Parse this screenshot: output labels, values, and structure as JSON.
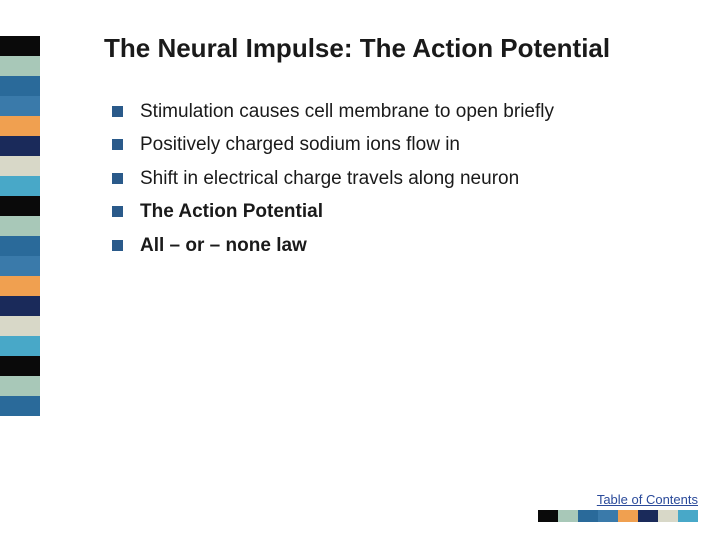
{
  "title": {
    "text": "The Neural Impulse: The Action Potential",
    "fontsize": 26,
    "color": "#1a1a1a"
  },
  "bullets": {
    "fontsize": 19,
    "marker_color": "#2a5a8a",
    "items": [
      {
        "text": "Stimulation causes cell membrane to open briefly",
        "bold": false
      },
      {
        "text": "Positively charged sodium ions flow in",
        "bold": false
      },
      {
        "text": "Shift in electrical charge travels along neuron",
        "bold": false
      },
      {
        "text": "The Action Potential",
        "bold": true
      },
      {
        "text": "All – or – none law",
        "bold": true
      }
    ]
  },
  "sidebar": {
    "block_width": 40,
    "block_height": 20,
    "colors": [
      "#0a0a0a",
      "#a8c8b8",
      "#2a6a9a",
      "#3a7aaa",
      "#f0a050",
      "#1a2a5a",
      "#d8d8c8",
      "#48a8c8",
      "#0a0a0a",
      "#a8c8b8",
      "#2a6a9a",
      "#3a7aaa",
      "#f0a050",
      "#1a2a5a",
      "#d8d8c8",
      "#48a8c8",
      "#0a0a0a",
      "#a8c8b8",
      "#2a6a9a"
    ]
  },
  "footer": {
    "toc_label": "Table of Contents",
    "toc_fontsize": 13,
    "strip_colors": [
      "#0a0a0a",
      "#a8c8b8",
      "#2a6a9a",
      "#3a7aaa",
      "#f0a050",
      "#1a2a5a",
      "#d8d8c8",
      "#48a8c8"
    ]
  },
  "background_color": "#ffffff"
}
